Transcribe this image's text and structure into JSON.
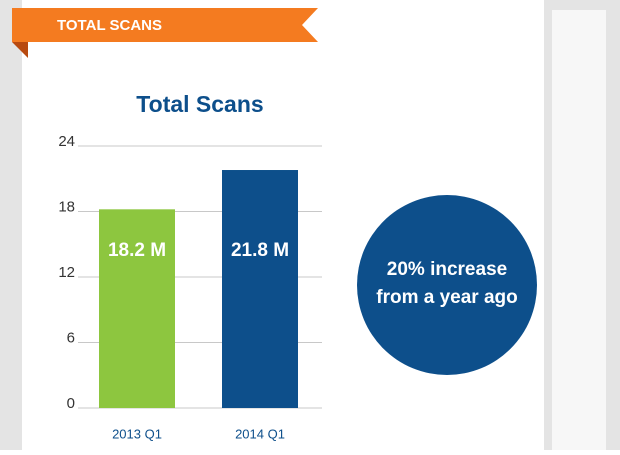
{
  "banner": "TOTAL SCANS",
  "chart_data": {
    "type": "bar",
    "title": "Total Scans",
    "categories": [
      "2013 Q1",
      "2014 Q1"
    ],
    "values": [
      18.2,
      21.8
    ],
    "value_labels": [
      "18.2 M",
      "21.8 M"
    ],
    "colors": [
      "#8dc63f",
      "#0d4f8b"
    ],
    "ylim": [
      0,
      24
    ],
    "yticks": [
      0,
      6,
      12,
      18,
      24
    ],
    "grid": true,
    "annotation": [
      "20% increase",
      "from a year ago"
    ]
  }
}
